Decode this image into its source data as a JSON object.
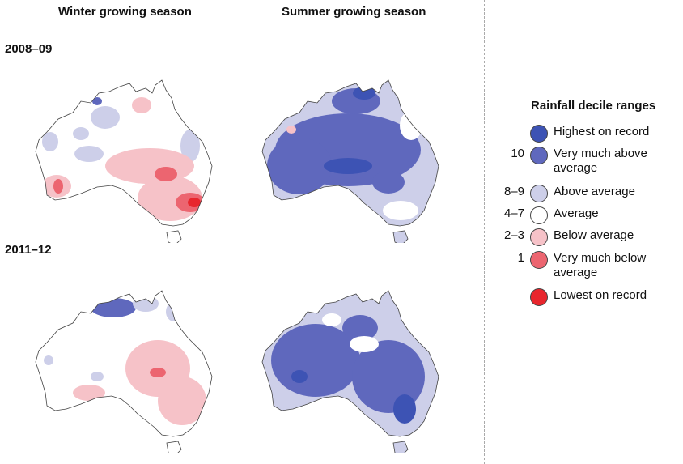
{
  "columns": {
    "winter": "Winter growing season",
    "summer": "Summer growing season"
  },
  "rows": {
    "r1": "2008–09",
    "r2": "2011–12"
  },
  "legend": {
    "title": "Rainfall decile ranges",
    "items": [
      {
        "code": "",
        "label": "Highest on record",
        "color": "#3d53b4"
      },
      {
        "code": "10",
        "label": "Very much above average",
        "color": "#5f68bd"
      },
      {
        "code": "8–9",
        "label": "Above average",
        "color": "#cdcfe9"
      },
      {
        "code": "4–7",
        "label": "Average",
        "color": "#ffffff"
      },
      {
        "code": "2–3",
        "label": "Below average",
        "color": "#f6c2c8"
      },
      {
        "code": "1",
        "label": "Very much below average",
        "color": "#ec6570"
      },
      {
        "code": "",
        "label": "Lowest on record",
        "color": "#e8262d"
      }
    ]
  },
  "colors": {
    "highest": "#3d53b4",
    "very_much_above": "#5f68bd",
    "above": "#cdcfe9",
    "average": "#ffffff",
    "below": "#f6c2c8",
    "very_much_below": "#ec6570",
    "lowest": "#e8262d",
    "outline": "#444444",
    "divider": "#aaaaaa"
  }
}
